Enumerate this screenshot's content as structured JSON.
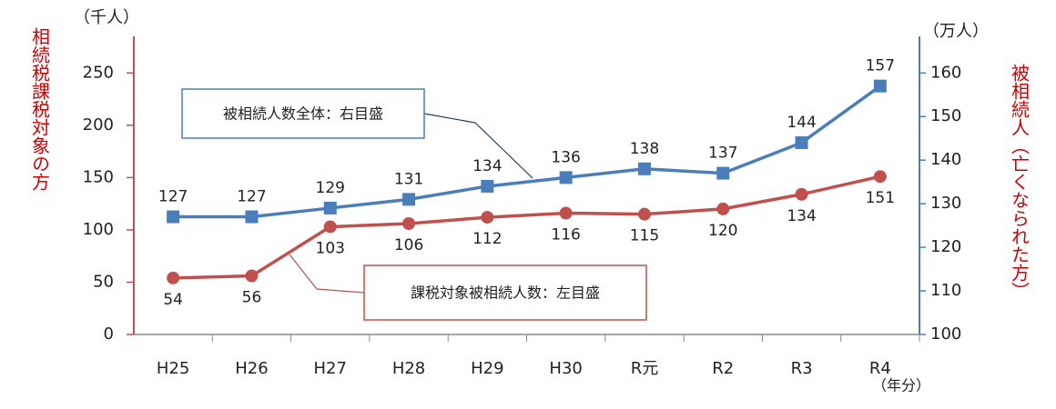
{
  "chart_data": {
    "type": "line",
    "categories": [
      "H25",
      "H26",
      "H27",
      "H28",
      "H29",
      "H30",
      "R元",
      "R2",
      "R3",
      "R4"
    ],
    "x_label": "（年分）",
    "y_label": "相続税課税対象の方",
    "y_unit": "（千人）",
    "y2_label": "被相続人（亡くなられた方）",
    "y2_unit": "（万人）",
    "ylim": [
      0,
      285
    ],
    "yticks": [
      0,
      50,
      100,
      150,
      200,
      250
    ],
    "y2lim": [
      100,
      168.4
    ],
    "y2ticks": [
      100,
      110,
      120,
      130,
      140,
      150,
      160
    ],
    "series": [
      {
        "name": "被相続人数全体：右目盛",
        "color": "#4a7ebb",
        "axis": "y2",
        "marker": "square",
        "values": [
          127,
          127,
          129,
          131,
          134,
          136,
          138,
          137,
          144,
          157
        ]
      },
      {
        "name": "課税対象被相続人数：左目盛",
        "color": "#c0504d",
        "axis": "y",
        "marker": "circle",
        "values": [
          54,
          56,
          103,
          106,
          112,
          116,
          115,
          120,
          134,
          151
        ]
      }
    ]
  }
}
